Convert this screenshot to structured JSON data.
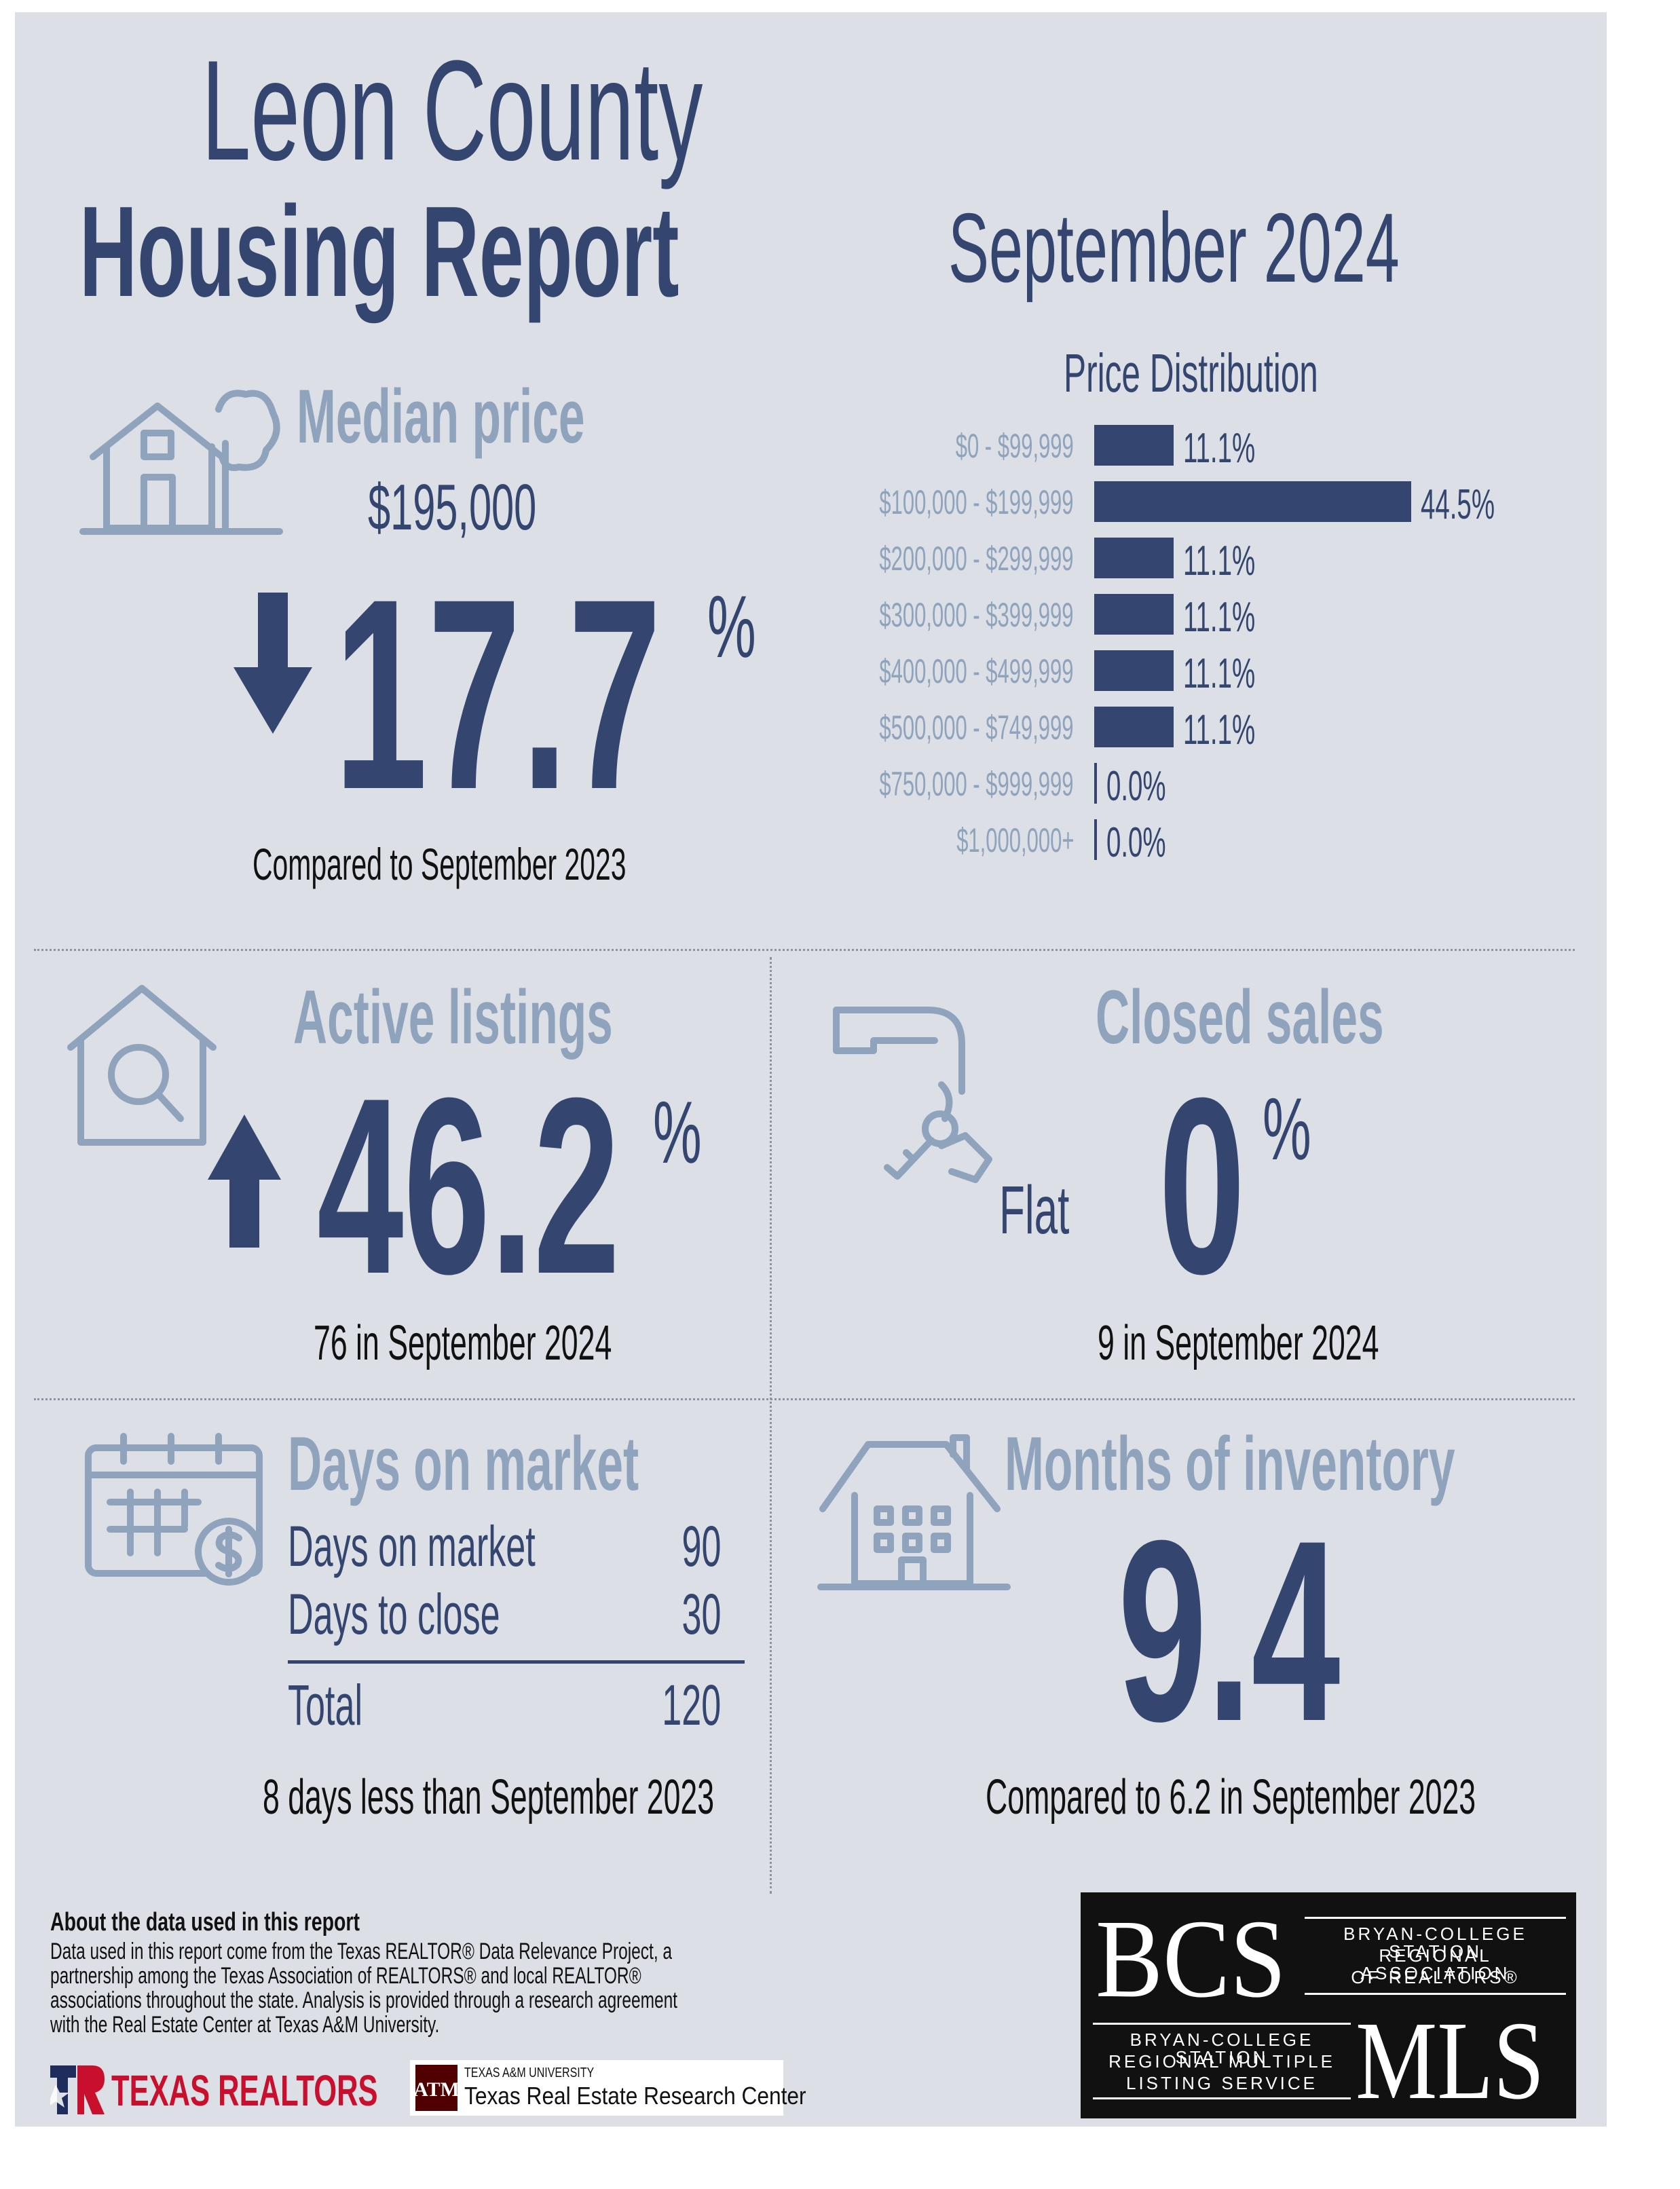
{
  "header": {
    "title_line1": "Leon County",
    "title_line2": "Housing Report",
    "period": "September 2024"
  },
  "median": {
    "heading": "Median price",
    "price": "$195,000",
    "change_value": "17.7",
    "pct_sign": "%",
    "direction": "down",
    "compare": "Compared to September 2023"
  },
  "price_distribution": {
    "heading": "Price Distribution",
    "rows": [
      {
        "label": "$0 - $99,999",
        "value_text": "11.1%",
        "share": 11.1
      },
      {
        "label": "$100,000 - $199,999",
        "value_text": "44.5%",
        "share": 44.5
      },
      {
        "label": "$200,000 - $299,999",
        "value_text": "11.1%",
        "share": 11.1
      },
      {
        "label": "$300,000 - $399,999",
        "value_text": "11.1%",
        "share": 11.1
      },
      {
        "label": "$400,000 - $499,999",
        "value_text": "11.1%",
        "share": 11.1
      },
      {
        "label": "$500,000 - $749,999",
        "value_text": "11.1%",
        "share": 11.1
      },
      {
        "label": "$750,000 - $999,999",
        "value_text": "0.0%",
        "share": 0.0
      },
      {
        "label": "$1,000,000+",
        "value_text": "0.0%",
        "share": 0.0
      }
    ]
  },
  "active_listings": {
    "heading": "Active listings",
    "change_value": "46.2",
    "pct_sign": "%",
    "direction": "up",
    "detail": "76 in September 2024"
  },
  "closed_sales": {
    "heading": "Closed sales",
    "trend_word": "Flat",
    "change_value": "0",
    "pct_sign": "%",
    "detail": "9 in September 2024"
  },
  "days_on_market": {
    "heading": "Days on market",
    "rows": [
      {
        "label": "Days on market",
        "value": "90"
      },
      {
        "label": "Days to close",
        "value": "30"
      }
    ],
    "total_label": "Total",
    "total_value": "120",
    "detail": "8 days less than September 2023"
  },
  "months_inventory": {
    "heading": "Months of inventory",
    "value": "9.4",
    "detail": "Compared to 6.2 in September 2023"
  },
  "about": {
    "heading": "About the data used in this report",
    "lines": [
      "Data used in this report come from the Texas REALTOR® Data Relevance Project, a",
      "partnership among the Texas Association of REALTORS® and local REALTOR®",
      "associations throughout the state. Analysis is provided through a research agreement",
      "with the Real Estate Center at Texas A&M University."
    ]
  },
  "logos": {
    "texas_realtors": "TEXAS REALTORS",
    "tamu_small": "TEXAS A&M UNIVERSITY",
    "tamu_center": "Texas Real Estate Research Center",
    "bcs_letters": "BCS",
    "bcs_assoc_lines": [
      "BRYAN-COLLEGE STATION",
      "REGIONAL ASSOCIATION",
      "OF REALTORS®"
    ],
    "mls_lines": [
      "BRYAN-COLLEGE STATION",
      "REGIONAL MULTIPLE",
      "LISTING SERVICE"
    ],
    "mls_letters": "MLS"
  },
  "colors": {
    "navy": "#34466f",
    "pale_heading": "#8fa3bd",
    "background": "#dcdfe5"
  }
}
